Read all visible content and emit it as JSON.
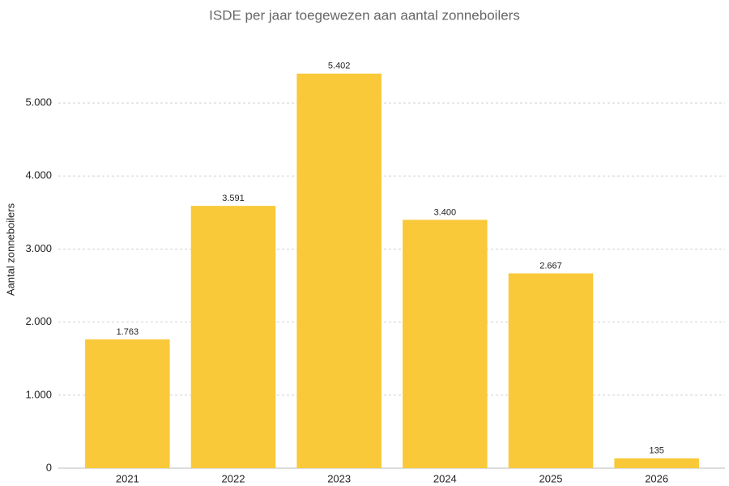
{
  "chart_data": {
    "type": "bar",
    "title": "ISDE per jaar toegewezen aan aantal zonneboilers",
    "y_label": "Aantal zonneboilers",
    "categories": [
      "2021",
      "2022",
      "2023",
      "2024",
      "2025",
      "2026"
    ],
    "values": [
      1763,
      3591,
      5402,
      3400,
      2667,
      135
    ],
    "value_labels": [
      "1.763",
      "3.591",
      "5.402",
      "3.400",
      "2.667",
      "135"
    ],
    "color": "#f9c93a",
    "ylim": [
      0,
      5500
    ],
    "yticks": [
      0,
      {
        "value": 1000,
        "label": "1.000"
      },
      {
        "value": 2000,
        "label": "2.000"
      },
      {
        "value": 3000,
        "label": "3.000"
      },
      {
        "value": 4000,
        "label": "4.000"
      },
      {
        "value": 5000,
        "label": "5.000"
      }
    ],
    "grid": true
  }
}
